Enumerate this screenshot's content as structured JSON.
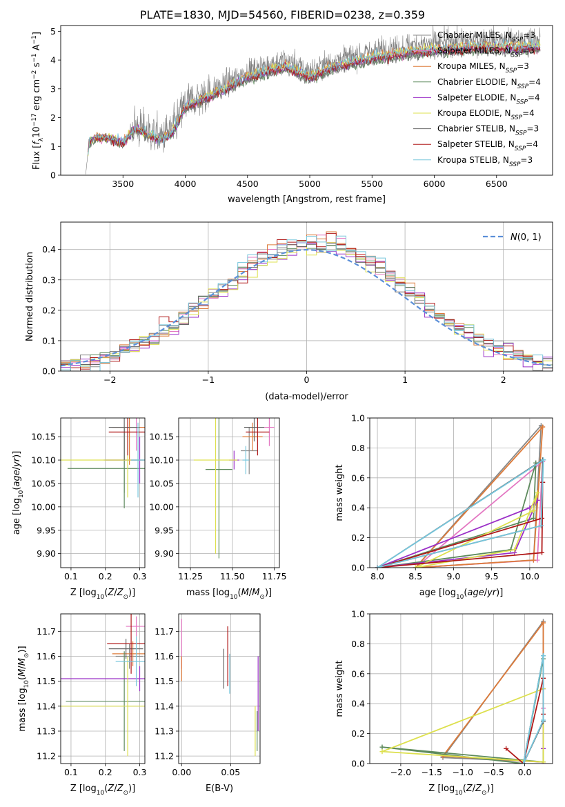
{
  "figure_title": "PLATE=1830, MJD=54560, FIBERID=0238, z=0.359",
  "colors": {
    "Chabrier MILES": "#888888",
    "Salpeter MILES": "#e377c2",
    "Kroupa MILES": "#dd7b3a",
    "Chabrier ELODIE": "#5d8a5d",
    "Salpeter ELODIE": "#9b30c8",
    "Kroupa ELODIE": "#dde04e",
    "Chabrier STELIB": "#666666",
    "Salpeter STELIB": "#b01818",
    "Kroupa STELIB": "#76c6dc",
    "normal_curve": "#5b8fd8"
  },
  "chart_data": [
    {
      "id": "spectrum",
      "type": "line",
      "title": "PLATE=1830, MJD=54560, FIBERID=0238, z=0.359",
      "xlabel": "wavelength [Angstrom, rest frame]",
      "ylabel": "Flux [f_λ 10^-17 erg cm^-2 s^-1 A^-1]",
      "xlim": [
        3000,
        6950
      ],
      "ylim": [
        0,
        5.2
      ],
      "xticks": [
        3500,
        4000,
        4500,
        5000,
        5500,
        6000,
        6500
      ],
      "yticks": [
        0,
        1,
        2,
        3,
        4,
        5
      ],
      "grid": false,
      "legend_position": "right",
      "legend": [
        {
          "name": "Chabrier MILES, N_SSP=3",
          "base": "Chabrier MILES",
          "n": "3"
        },
        {
          "name": "Salpeter MILES, N_SSP=3",
          "base": "Salpeter MILES",
          "n": "3"
        },
        {
          "name": "Kroupa MILES, N_SSP=3",
          "base": "Kroupa MILES",
          "n": "3"
        },
        {
          "name": "Chabrier ELODIE, N_SSP=4",
          "base": "Chabrier ELODIE",
          "n": "4"
        },
        {
          "name": "Salpeter ELODIE, N_SSP=4",
          "base": "Salpeter ELODIE",
          "n": "4"
        },
        {
          "name": "Kroupa ELODIE, N_SSP=4",
          "base": "Kroupa ELODIE",
          "n": "4"
        },
        {
          "name": "Chabrier STELIB, N_SSP=3",
          "base": "Chabrier STELIB",
          "n": "3"
        },
        {
          "name": "Salpeter STELIB, N_SSP=4",
          "base": "Salpeter STELIB",
          "n": "4"
        },
        {
          "name": "Kroupa STELIB, N_SSP=3",
          "base": "Kroupa STELIB",
          "n": "3"
        }
      ],
      "data_start": 3200,
      "data_end": 6850,
      "continuum": [
        [
          3200,
          0.0
        ],
        [
          3230,
          1.25
        ],
        [
          3300,
          1.4
        ],
        [
          3400,
          1.35
        ],
        [
          3500,
          1.2
        ],
        [
          3600,
          1.7
        ],
        [
          3700,
          1.5
        ],
        [
          3800,
          1.3
        ],
        [
          3900,
          1.6
        ],
        [
          4000,
          2.5
        ],
        [
          4200,
          2.9
        ],
        [
          4500,
          3.6
        ],
        [
          4800,
          4.0
        ],
        [
          5000,
          3.6
        ],
        [
          5200,
          4.0
        ],
        [
          5500,
          4.3
        ],
        [
          5800,
          4.5
        ],
        [
          6000,
          4.6
        ],
        [
          6300,
          4.7
        ],
        [
          6600,
          4.7
        ],
        [
          6850,
          4.7
        ]
      ]
    },
    {
      "id": "residuals",
      "type": "histogram",
      "xlabel": "(data-model)/error",
      "ylabel": "Normed distribution",
      "xlim": [
        -2.5,
        2.5
      ],
      "ylim": [
        0,
        0.49
      ],
      "xticks": [
        -2,
        -1,
        0,
        1,
        2
      ],
      "yticks": [
        0.0,
        0.1,
        0.2,
        0.3,
        0.4
      ],
      "grid": true,
      "bin_width": 0.1,
      "legend_position": "top-right",
      "legend": [
        "N(0,1)"
      ],
      "model_curve": "gaussian mean 0, sigma 1"
    },
    {
      "id": "age_vs_Z",
      "type": "scatter",
      "xlabel": "Z [log10(Z/Z_sun)]",
      "ylabel": "age [log10(age/yr)]",
      "xlim": [
        0.07,
        0.315
      ],
      "ylim": [
        9.87,
        10.19
      ],
      "xticks": [
        0.1,
        0.2,
        0.3
      ],
      "yticks": [
        9.9,
        9.95,
        10.0,
        10.05,
        10.1,
        10.15
      ],
      "grid": true,
      "points": [
        {
          "series": "Chabrier MILES",
          "x": 0.255,
          "y": 10.1,
          "xerr": 0.06,
          "yerr": 0.07
        },
        {
          "series": "Salpeter MILES",
          "x": 0.29,
          "y": 10.17,
          "xerr": 0.03,
          "yerr": 0.05
        },
        {
          "series": "Kroupa MILES",
          "x": 0.27,
          "y": 10.17,
          "xerr": 0.05,
          "yerr": 0.08
        },
        {
          "series": "Chabrier ELODIE",
          "x": 0.255,
          "y": 10.082,
          "xerr": 0.165,
          "yerr": 0.085
        },
        {
          "series": "Salpeter ELODIE",
          "x": 0.3,
          "y": 10.1,
          "xerr": 0.1,
          "yerr": 0.05
        },
        {
          "series": "Kroupa ELODIE",
          "x": 0.265,
          "y": 10.1,
          "xerr": 0.2,
          "yerr": 0.08
        },
        {
          "series": "Chabrier STELIB",
          "x": 0.255,
          "y": 10.17,
          "xerr": 0.045,
          "yerr": 0.07
        },
        {
          "series": "Salpeter STELIB",
          "x": 0.265,
          "y": 10.16,
          "xerr": 0.055,
          "yerr": 0.05
        },
        {
          "series": "Kroupa STELIB",
          "x": 0.295,
          "y": 10.1,
          "xerr": 0.02,
          "yerr": 0.08
        }
      ]
    },
    {
      "id": "age_vs_mass",
      "type": "scatter",
      "xlabel": "mass [log10(M/M_sun)]",
      "ylabel": "",
      "xlim": [
        11.18,
        11.78
      ],
      "ylim": [
        9.87,
        10.19
      ],
      "xticks": [
        11.25,
        11.5,
        11.75
      ],
      "yticks": [
        9.9,
        9.95,
        10.0,
        10.05,
        10.1,
        10.15
      ],
      "grid": true,
      "points": [
        {
          "series": "Chabrier MILES",
          "x": 11.6,
          "y": 10.12,
          "xerr": 0.05,
          "yerr": 0.05
        },
        {
          "series": "Salpeter MILES",
          "x": 11.72,
          "y": 10.17,
          "xerr": 0.03,
          "yerr": 0.04
        },
        {
          "series": "Kroupa MILES",
          "x": 11.62,
          "y": 10.15,
          "xerr": 0.06,
          "yerr": 0.03
        },
        {
          "series": "Chabrier ELODIE",
          "x": 11.42,
          "y": 10.08,
          "xerr": 0.08,
          "yerr": 0.19
        },
        {
          "series": "Salpeter ELODIE",
          "x": 11.51,
          "y": 10.1,
          "xerr": 0.03,
          "yerr": 0.02
        },
        {
          "series": "Kroupa ELODIE",
          "x": 11.4,
          "y": 10.1,
          "xerr": 0.13,
          "yerr": 0.2
        },
        {
          "series": "Chabrier STELIB",
          "x": 11.63,
          "y": 10.17,
          "xerr": 0.06,
          "yerr": 0.03
        },
        {
          "series": "Salpeter STELIB",
          "x": 11.65,
          "y": 10.16,
          "xerr": 0.07,
          "yerr": 0.05
        },
        {
          "series": "Kroupa STELIB",
          "x": 11.58,
          "y": 10.1,
          "xerr": 0.02,
          "yerr": 0.03
        }
      ]
    },
    {
      "id": "weight_vs_age",
      "type": "line",
      "xlabel": "age [log10(age/yr)]",
      "ylabel": "mass weight",
      "xlim": [
        7.9,
        10.3
      ],
      "ylim": [
        0,
        1.0
      ],
      "xticks": [
        8.0,
        8.5,
        9.0,
        9.5,
        10.0
      ],
      "yticks": [
        0.0,
        0.2,
        0.4,
        0.6,
        0.8,
        1.0
      ],
      "grid": true,
      "series": [
        {
          "name": "Chabrier MILES",
          "points": [
            [
              10.15,
              0.95
            ],
            [
              10.05,
              0.05
            ],
            [
              8.5,
              0.0
            ],
            [
              10.15,
              0.95
            ]
          ]
        },
        {
          "name": "Salpeter MILES",
          "points": [
            [
              10.17,
              0.71
            ],
            [
              10.1,
              0.05
            ],
            [
              8.5,
              0.0
            ],
            [
              10.17,
              0.71
            ]
          ]
        },
        {
          "name": "Kroupa MILES",
          "points": [
            [
              10.17,
              0.94
            ],
            [
              10.05,
              0.05
            ],
            [
              8.5,
              0.0
            ],
            [
              10.17,
              0.94
            ]
          ]
        },
        {
          "name": "Chabrier ELODIE",
          "points": [
            [
              10.08,
              0.7
            ],
            [
              9.75,
              0.12
            ],
            [
              8.0,
              0.0
            ],
            [
              10.05,
              0.33
            ],
            [
              10.08,
              0.7
            ]
          ]
        },
        {
          "name": "Salpeter ELODIE",
          "points": [
            [
              10.1,
              0.45
            ],
            [
              9.8,
              0.1
            ],
            [
              8.0,
              0.0
            ],
            [
              10.0,
              0.4
            ],
            [
              10.1,
              0.45
            ]
          ]
        },
        {
          "name": "Kroupa ELODIE",
          "points": [
            [
              10.1,
              0.5
            ],
            [
              9.8,
              0.12
            ],
            [
              8.5,
              0.0
            ],
            [
              10.05,
              0.38
            ],
            [
              10.1,
              0.5
            ]
          ]
        },
        {
          "name": "Chabrier STELIB",
          "points": [
            [
              10.17,
              0.72
            ],
            [
              10.15,
              0.28
            ],
            [
              8.0,
              0.0
            ],
            [
              10.17,
              0.72
            ]
          ]
        },
        {
          "name": "Salpeter STELIB",
          "points": [
            [
              10.17,
              0.57
            ],
            [
              10.16,
              0.1
            ],
            [
              8.0,
              0.0
            ],
            [
              10.16,
              0.33
            ],
            [
              10.17,
              0.57
            ]
          ]
        },
        {
          "name": "Kroupa STELIB",
          "points": [
            [
              10.18,
              0.72
            ],
            [
              10.15,
              0.28
            ],
            [
              8.0,
              0.0
            ],
            [
              10.18,
              0.72
            ]
          ]
        }
      ]
    },
    {
      "id": "mass_vs_Z",
      "type": "scatter",
      "xlabel": "Z [log10(Z/Z_sun)]",
      "ylabel": "mass [log10(M/M_sun)]",
      "xlim": [
        0.07,
        0.315
      ],
      "ylim": [
        11.17,
        11.77
      ],
      "xticks": [
        0.1,
        0.2,
        0.3
      ],
      "yticks": [
        11.2,
        11.3,
        11.4,
        11.5,
        11.6,
        11.7
      ],
      "grid": true,
      "points": [
        {
          "series": "Chabrier MILES",
          "x": 0.27,
          "y": 11.6,
          "xerr": 0.04,
          "yerr": 0.05
        },
        {
          "series": "Salpeter MILES",
          "x": 0.29,
          "y": 11.72,
          "xerr": 0.03,
          "yerr": 0.04
        },
        {
          "series": "Kroupa MILES",
          "x": 0.28,
          "y": 11.61,
          "xerr": 0.06,
          "yerr": 0.05
        },
        {
          "series": "Chabrier ELODIE",
          "x": 0.255,
          "y": 11.42,
          "xerr": 0.17,
          "yerr": 0.2
        },
        {
          "series": "Salpeter ELODIE",
          "x": 0.3,
          "y": 11.51,
          "xerr": 0.25,
          "yerr": 0.05
        },
        {
          "series": "Kroupa ELODIE",
          "x": 0.265,
          "y": 11.4,
          "xerr": 0.2,
          "yerr": 0.2
        },
        {
          "series": "Chabrier STELIB",
          "x": 0.26,
          "y": 11.63,
          "xerr": 0.05,
          "yerr": 0.04
        },
        {
          "series": "Salpeter STELIB",
          "x": 0.275,
          "y": 11.65,
          "xerr": 0.07,
          "yerr": 0.12
        },
        {
          "series": "Kroupa STELIB",
          "x": 0.29,
          "y": 11.58,
          "xerr": 0.06,
          "yerr": 0.1
        }
      ]
    },
    {
      "id": "mass_vs_ebv",
      "type": "scatter",
      "xlabel": "E(B-V)",
      "ylabel": "",
      "xlim": [
        -0.003,
        0.08
      ],
      "ylim": [
        11.17,
        11.77
      ],
      "xticks": [
        0.0,
        0.05
      ],
      "yticks": [
        11.2,
        11.3,
        11.4,
        11.5,
        11.6,
        11.7
      ],
      "grid": true,
      "points": [
        {
          "series": "Salpeter MILES",
          "x": 0.0,
          "y": 11.65,
          "yerr": 0.1
        },
        {
          "series": "Kroupa MILES",
          "x": 0.0,
          "y": 11.55,
          "yerr": 0.05
        },
        {
          "series": "Chabrier ELODIE",
          "x": 0.077,
          "y": 11.3,
          "yerr": 0.08
        },
        {
          "series": "Salpeter ELODIE",
          "x": 0.078,
          "y": 11.45,
          "yerr": 0.15
        },
        {
          "series": "Kroupa ELODIE",
          "x": 0.075,
          "y": 11.3,
          "yerr": 0.1
        },
        {
          "series": "Chabrier STELIB",
          "x": 0.043,
          "y": 11.55,
          "yerr": 0.08
        },
        {
          "series": "Salpeter STELIB",
          "x": 0.047,
          "y": 11.6,
          "yerr": 0.12
        },
        {
          "series": "Kroupa STELIB",
          "x": 0.049,
          "y": 11.53,
          "yerr": 0.08
        }
      ]
    },
    {
      "id": "weight_vs_Z",
      "type": "line",
      "xlabel": "Z [log10(Z/Z_sun)]",
      "ylabel": "mass weight",
      "xlim": [
        -2.5,
        0.45
      ],
      "ylim": [
        0,
        1.0
      ],
      "xticks": [
        -2.0,
        -1.5,
        -1.0,
        -0.5,
        0.0
      ],
      "yticks": [
        0.0,
        0.2,
        0.4,
        0.6,
        0.8,
        1.0
      ],
      "grid": true,
      "series": [
        {
          "name": "Chabrier MILES",
          "points": [
            [
              0.3,
              0.95
            ],
            [
              -1.32,
              0.04
            ],
            [
              0.3,
              0.01
            ],
            [
              0.3,
              0.95
            ]
          ]
        },
        {
          "name": "Salpeter MILES",
          "points": [
            [
              0.3,
              0.37
            ],
            [
              0.3,
              0.0
            ],
            [
              0.3,
              0.37
            ]
          ]
        },
        {
          "name": "Kroupa MILES",
          "points": [
            [
              0.3,
              0.94
            ],
            [
              -1.32,
              0.05
            ],
            [
              0.3,
              0.01
            ],
            [
              0.3,
              0.94
            ]
          ]
        },
        {
          "name": "Chabrier ELODIE",
          "points": [
            [
              -2.3,
              0.11
            ],
            [
              0.3,
              0.01
            ],
            [
              0.3,
              0.7
            ],
            [
              -0.02,
              0.0
            ],
            [
              -2.3,
              0.11
            ]
          ]
        },
        {
          "name": "Salpeter ELODIE",
          "points": [
            [
              0.3,
              0.5
            ],
            [
              0.3,
              0.1
            ],
            [
              0.3,
              0.5
            ]
          ]
        },
        {
          "name": "Kroupa ELODIE",
          "points": [
            [
              -2.3,
              0.08
            ],
            [
              0.3,
              0.01
            ],
            [
              0.3,
              0.5
            ],
            [
              -2.3,
              0.08
            ]
          ]
        },
        {
          "name": "Chabrier STELIB",
          "points": [
            [
              0.3,
              0.72
            ],
            [
              0.3,
              0.28
            ],
            [
              -0.02,
              0.0
            ],
            [
              0.3,
              0.72
            ]
          ]
        },
        {
          "name": "Salpeter STELIB",
          "points": [
            [
              -0.3,
              0.1
            ],
            [
              -0.02,
              0.0
            ],
            [
              0.3,
              0.57
            ],
            [
              0.3,
              0.33
            ]
          ]
        },
        {
          "name": "Kroupa STELIB",
          "points": [
            [
              0.3,
              0.72
            ],
            [
              0.3,
              0.29
            ],
            [
              -0.02,
              0.0
            ],
            [
              0.3,
              0.72
            ]
          ]
        }
      ]
    }
  ]
}
